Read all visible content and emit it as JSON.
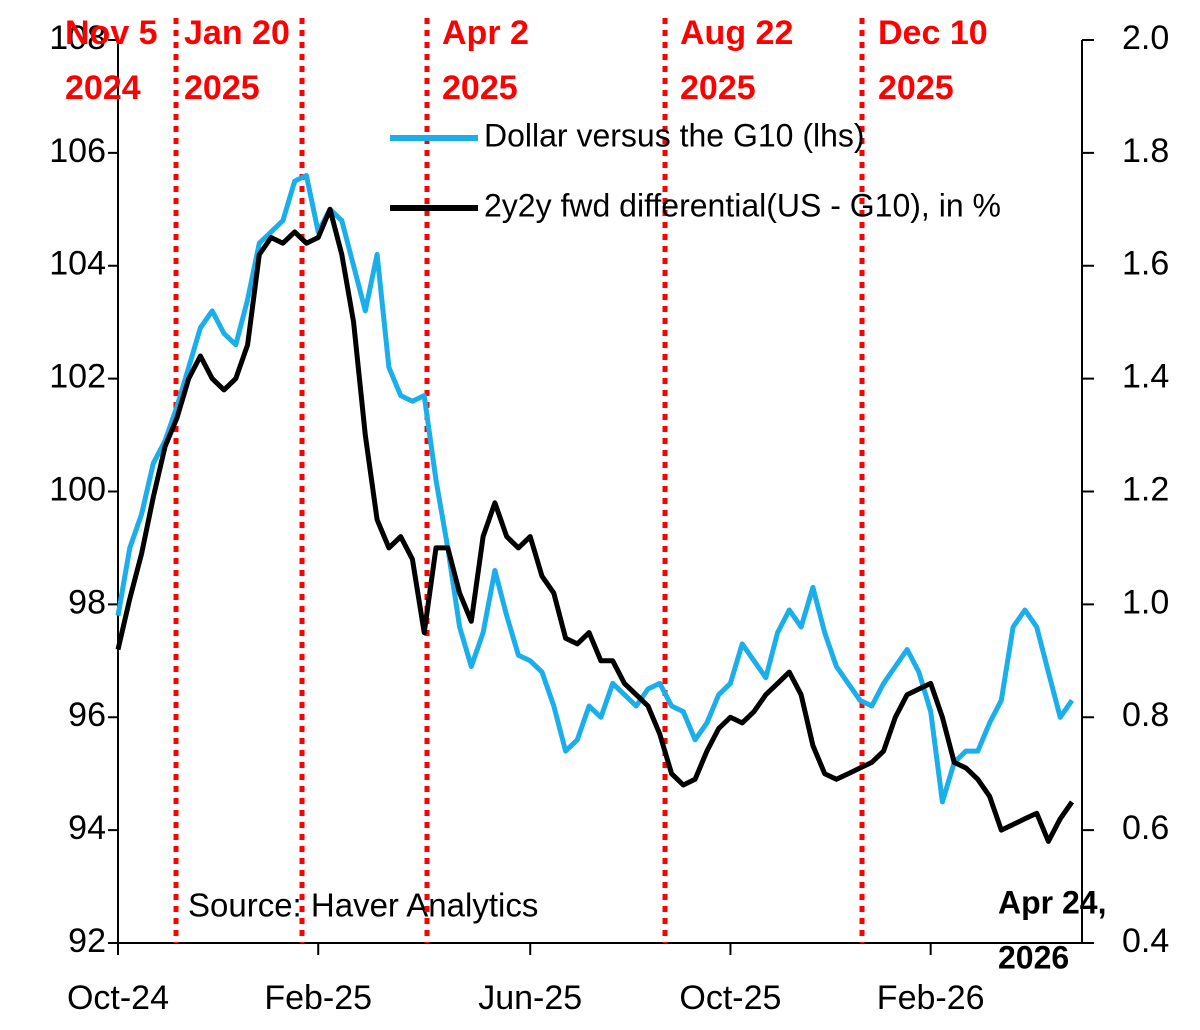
{
  "chart_data": {
    "type": "line",
    "categories": [
      "Oct-24",
      null,
      null,
      null,
      null,
      null,
      null,
      null,
      null,
      null,
      null,
      null,
      null,
      null,
      null,
      null,
      null,
      "Feb-25",
      null,
      null,
      null,
      null,
      null,
      null,
      null,
      null,
      null,
      null,
      null,
      null,
      null,
      null,
      null,
      null,
      null,
      "Jun-25",
      null,
      null,
      null,
      null,
      null,
      null,
      null,
      null,
      null,
      null,
      null,
      null,
      null,
      null,
      null,
      null,
      "Oct-25",
      null,
      null,
      null,
      null,
      null,
      null,
      null,
      null,
      null,
      null,
      null,
      null,
      null,
      null,
      null,
      null,
      "Feb-26",
      null,
      null,
      null,
      null,
      null,
      null,
      null,
      null,
      null,
      null,
      null,
      null
    ],
    "series": [
      {
        "name": "Dollar versus the G10 (lhs)",
        "color": "#1aaeea",
        "values": [
          97.8,
          99.0,
          99.6,
          100.5,
          100.9,
          101.5,
          102.2,
          102.9,
          103.2,
          102.8,
          102.6,
          103.4,
          104.4,
          104.6,
          104.8,
          105.5,
          105.6,
          104.6,
          105.0,
          104.8,
          104.0,
          103.2,
          104.2,
          102.2,
          101.7,
          101.6,
          101.7,
          100.2,
          99.0,
          97.6,
          96.9,
          97.5,
          98.6,
          97.8,
          97.1,
          97.0,
          96.8,
          96.2,
          95.4,
          95.6,
          96.2,
          96.0,
          96.6,
          96.4,
          96.2,
          96.5,
          96.6,
          96.2,
          96.1,
          95.6,
          95.9,
          96.4,
          96.6,
          97.3,
          97.0,
          96.7,
          97.5,
          97.9,
          97.6,
          98.3,
          97.5,
          96.9,
          96.6,
          96.3,
          96.2,
          96.6,
          96.9,
          97.2,
          96.8,
          96.1,
          94.5,
          95.2,
          95.4,
          95.4,
          95.9,
          96.3,
          97.6,
          97.9,
          97.6,
          96.8,
          96.0,
          96.3
        ]
      },
      {
        "name": "2y2y fwd differential(US - G10), in %",
        "color": "#000000",
        "axis": "y2",
        "values": [
          0.92,
          1.01,
          1.09,
          1.19,
          1.28,
          1.33,
          1.4,
          1.44,
          1.4,
          1.38,
          1.4,
          1.46,
          1.62,
          1.65,
          1.64,
          1.66,
          1.64,
          1.65,
          1.7,
          1.62,
          1.5,
          1.3,
          1.15,
          1.1,
          1.12,
          1.08,
          0.95,
          1.1,
          1.1,
          1.02,
          0.97,
          1.12,
          1.18,
          1.12,
          1.1,
          1.12,
          1.05,
          1.02,
          0.94,
          0.93,
          0.95,
          0.9,
          0.9,
          0.86,
          0.84,
          0.82,
          0.77,
          0.7,
          0.68,
          0.69,
          0.74,
          0.78,
          0.8,
          0.79,
          0.81,
          0.84,
          0.86,
          0.88,
          0.84,
          0.75,
          0.7,
          0.69,
          0.7,
          0.71,
          0.72,
          0.74,
          0.8,
          0.84,
          0.85,
          0.86,
          0.8,
          0.72,
          0.71,
          0.69,
          0.66,
          0.6,
          0.61,
          0.62,
          0.63,
          0.58,
          0.62,
          0.65
        ]
      }
    ],
    "ylim": [
      92,
      108
    ],
    "yticks": [
      92,
      94,
      96,
      98,
      100,
      102,
      104,
      106,
      108
    ],
    "y2lim": [
      0.4,
      2.0
    ],
    "y2ticks": [
      0.4,
      0.6,
      0.8,
      {
        "value": 1.0,
        "label": "1.0"
      },
      1.2,
      1.4,
      1.6,
      1.8,
      {
        "value": 2.0,
        "label": "2.0"
      }
    ],
    "grid": false,
    "annotations": [
      {
        "lines": [
          "Nov 5",
          "2024"
        ],
        "color": "#ff0000"
      },
      {
        "lines": [
          "Jan 20",
          "2025"
        ],
        "color": "#ff0000"
      },
      {
        "lines": [
          "Apr 2",
          "2025"
        ],
        "color": "#ff0000"
      },
      {
        "lines": [
          "Aug 22",
          "2025"
        ],
        "color": "#ff0000"
      },
      {
        "lines": [
          "Dec 10",
          "2025"
        ],
        "color": "#ff0000"
      }
    ],
    "source": "Source: Haver Analytics",
    "end_note": [
      "Apr 24,",
      "2026"
    ]
  }
}
